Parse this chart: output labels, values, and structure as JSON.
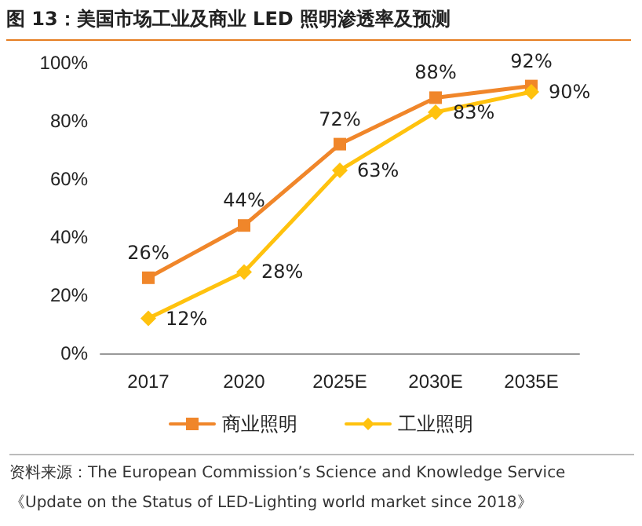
{
  "chart_data": {
    "type": "line",
    "title": "图 13：美国市场工业及商业 LED 照明渗透率及预测",
    "categories": [
      "2017",
      "2020",
      "2025E",
      "2030E",
      "2035E"
    ],
    "series": [
      {
        "name": "商业照明",
        "color": "#f0862a",
        "marker": "square",
        "values": [
          26,
          44,
          72,
          88,
          92
        ],
        "value_labels": [
          "26%",
          "44%",
          "72%",
          "88%",
          "92%"
        ]
      },
      {
        "name": "工业照明",
        "color": "#ffc20e",
        "marker": "diamond",
        "values": [
          12,
          28,
          63,
          83,
          90
        ],
        "value_labels": [
          "12%",
          "28%",
          "63%",
          "83%",
          "90%"
        ]
      }
    ],
    "ylim": [
      0,
      100
    ],
    "yticks": [
      {
        "value": 0,
        "label": "0%"
      },
      {
        "value": 20,
        "label": "20%"
      },
      {
        "value": 40,
        "label": "40%"
      },
      {
        "value": 60,
        "label": "60%"
      },
      {
        "value": 80,
        "label": "80%"
      },
      {
        "value": 100,
        "label": "100%"
      }
    ],
    "grid": false,
    "legend": "bottom",
    "annotations": [
      "资料来源：The European Commission’s Science and Knowledge Service《Update on the Status of LED-Lighting world market since 2018》"
    ]
  }
}
